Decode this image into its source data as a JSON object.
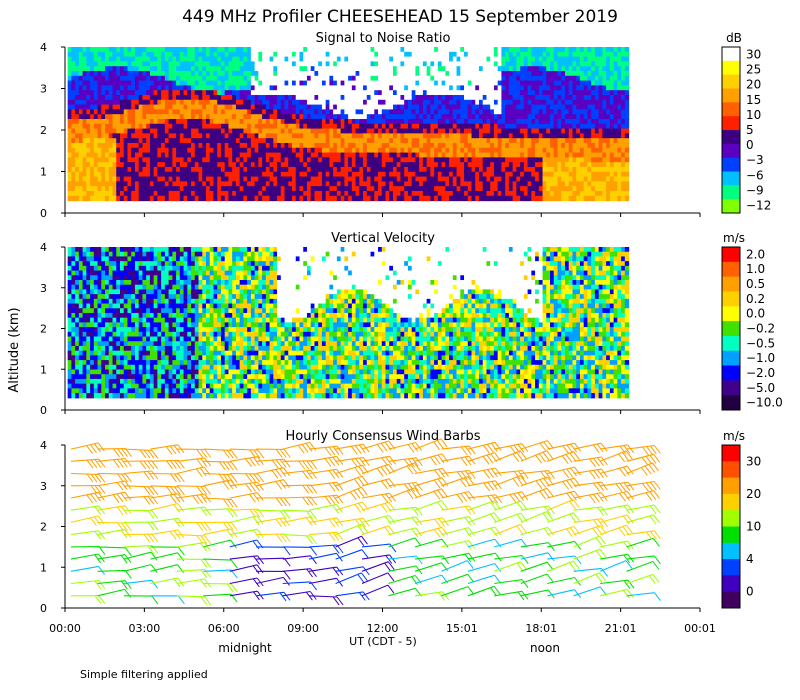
{
  "title": "449 MHz Profiler CHEESEHEAD 15 September 2019",
  "ylabel": "Altitude (km)",
  "x_axis": {
    "ticks": [
      "00:00",
      "03:00",
      "06:00",
      "09:00",
      "12:00",
      "15:01",
      "18:01",
      "21:01",
      "00:01"
    ],
    "label": "UT (CDT - 5)",
    "local_labels": [
      "midnight",
      "noon"
    ]
  },
  "footnote": "Simple filtering applied",
  "chart_data": [
    {
      "type": "heatmap",
      "title": "Signal to Noise Ratio",
      "ylim": [
        0,
        4
      ],
      "yticks": [
        "0",
        "1",
        "2",
        "3",
        "4"
      ],
      "xlim_hours": [
        0,
        24
      ],
      "data_extent_hours": [
        0.1,
        21.3
      ],
      "colorbar": {
        "unit": "dB",
        "labels": [
          "30",
          "25",
          "20",
          "15",
          "10",
          "5",
          "0",
          "−3",
          "−6",
          "−9",
          "−12"
        ],
        "colors": [
          "#ffffff",
          "#ffff00",
          "#ffd000",
          "#ffa000",
          "#ff6000",
          "#ff2000",
          "#3d0080",
          "#5a00c0",
          "#0040ff",
          "#00c0ff",
          "#00ff80",
          "#80ff00"
        ]
      },
      "fields": {
        "strong_layer_km": {
          "start": 1.9,
          "peak": 2.6,
          "peak_hour": 4.8,
          "end": 1.5
        },
        "clear_region_hours": [
          7.0,
          16.5
        ],
        "clear_region_km": [
          2.6,
          4.0
        ]
      }
    },
    {
      "type": "heatmap",
      "title": "Vertical Velocity",
      "ylim": [
        0,
        4
      ],
      "yticks": [
        "0",
        "1",
        "2",
        "3",
        "4"
      ],
      "xlim_hours": [
        0,
        24
      ],
      "data_extent_hours": [
        0.1,
        21.3
      ],
      "colorbar": {
        "unit": "m/s",
        "labels": [
          "2.0",
          "1.0",
          "0.5",
          "0.2",
          "0.0",
          "−0.2",
          "−0.5",
          "−1.0",
          "−2.0",
          "−5.0",
          "−10.0"
        ],
        "colors": [
          "#ff0000",
          "#ff6000",
          "#ffa000",
          "#ffd000",
          "#ffff00",
          "#40e000",
          "#00ffc0",
          "#00a0ff",
          "#0000ff",
          "#40008c",
          "#200040"
        ]
      }
    },
    {
      "type": "scatter",
      "subtype": "wind_barbs",
      "title": "Hourly Consensus Wind Barbs",
      "ylim": [
        0,
        4
      ],
      "yticks": [
        "0",
        "1",
        "2",
        "3",
        "4"
      ],
      "xlim_hours": [
        0,
        24
      ],
      "hours": [
        0,
        1,
        2,
        3,
        4,
        5,
        6,
        7,
        8,
        9,
        10,
        11,
        12,
        13,
        14,
        15,
        16,
        17,
        18,
        19,
        20,
        21
      ],
      "altitudes_km": [
        0.3,
        0.6,
        0.9,
        1.2,
        1.5,
        1.8,
        2.1,
        2.4,
        2.7,
        3.0,
        3.3,
        3.6,
        3.9
      ],
      "colorbar": {
        "unit": "m/s",
        "labels": [
          "30",
          "20",
          "10",
          "4",
          "0"
        ],
        "colors": [
          "#ff0000",
          "#ff5000",
          "#ffa000",
          "#ffd000",
          "#a0ff00",
          "#00e000",
          "#00c0ff",
          "#0040ff",
          "#4000c0",
          "#400060"
        ]
      }
    }
  ]
}
